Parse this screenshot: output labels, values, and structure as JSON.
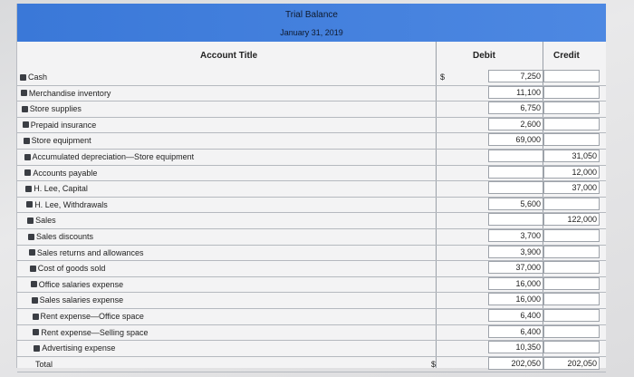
{
  "title": "Trial Balance",
  "date": "January 31, 2019",
  "headers": {
    "account": "Account Title",
    "debit": "Debit",
    "credit": "Credit"
  },
  "rows": [
    {
      "account": "Cash",
      "debit": "7,250",
      "credit": ""
    },
    {
      "account": "Merchandise inventory",
      "debit": "11,100",
      "credit": ""
    },
    {
      "account": "Store supplies",
      "debit": "6,750",
      "credit": ""
    },
    {
      "account": "Prepaid insurance",
      "debit": "2,600",
      "credit": ""
    },
    {
      "account": "Store equipment",
      "debit": "69,000",
      "credit": ""
    },
    {
      "account": "Accumulated depreciation—Store equipment",
      "debit": "",
      "credit": "31,050"
    },
    {
      "account": "Accounts payable",
      "debit": "",
      "credit": "12,000"
    },
    {
      "account": "H. Lee, Capital",
      "debit": "",
      "credit": "37,000"
    },
    {
      "account": "H. Lee, Withdrawals",
      "debit": "5,600",
      "credit": ""
    },
    {
      "account": "Sales",
      "debit": "",
      "credit": "122,000"
    },
    {
      "account": "Sales discounts",
      "debit": "3,700",
      "credit": ""
    },
    {
      "account": "Sales returns and allowances",
      "debit": "3,900",
      "credit": ""
    },
    {
      "account": "Cost of goods sold",
      "debit": "37,000",
      "credit": ""
    },
    {
      "account": "Office salaries expense",
      "debit": "16,000",
      "credit": ""
    },
    {
      "account": "Sales salaries expense",
      "debit": "16,000",
      "credit": ""
    },
    {
      "account": "Rent expense—Office space",
      "debit": "6,400",
      "credit": ""
    },
    {
      "account": "Rent expense—Selling space",
      "debit": "6,400",
      "credit": ""
    },
    {
      "account": "Advertising expense",
      "debit": "10,350",
      "credit": ""
    }
  ],
  "total": {
    "label": "Total",
    "debit": "202,050",
    "credit": "202,050",
    "currency": "$"
  },
  "first_row_currency": "$"
}
